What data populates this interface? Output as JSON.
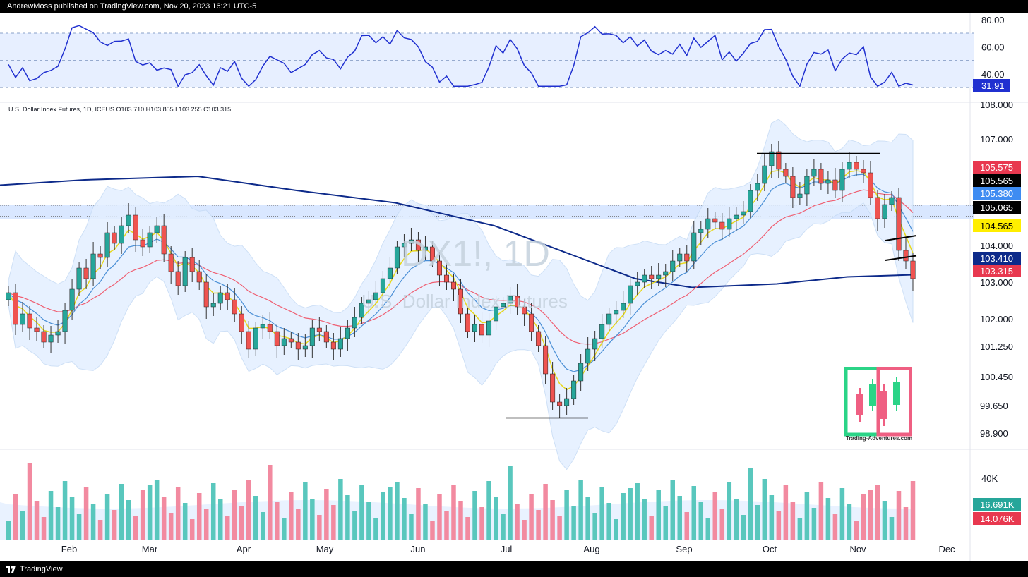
{
  "header": {
    "text": "AndrewMoss published on TradingView.com, Nov 20, 2023 16:21 UTC-5"
  },
  "footer": {
    "text": "TradingView",
    "logo": "tradingview-logo-icon"
  },
  "symbol_line": "U.S. Dollar Index Futures, 1D, ICEUS  O103.710  H103.855  L103.255  C103.315",
  "watermark": {
    "symbol": "DX1!, 1D",
    "name": "U.S. Dollar Index Futures"
  },
  "logo": {
    "text": "Trading-Adventures.com",
    "green": "#2bd487",
    "pink": "#ef5f82"
  },
  "colors": {
    "up": "#26a69a",
    "down": "#ef5350",
    "sma200": "#0d2a8a",
    "ema50": "#ef5f72",
    "ema20": "#4a8fd6",
    "ema10": "#e8d81c",
    "band": "#e3efff",
    "rsi": "#2030d0",
    "zone": "#cfe1ff"
  },
  "chart_data": {
    "type": "candlestick",
    "x_axis_labels": [
      "Feb",
      "Mar",
      "Apr",
      "May",
      "Jun",
      "Jul",
      "Aug",
      "Sep",
      "Oct",
      "Nov",
      "Dec"
    ],
    "price_axis": {
      "ticks": [
        "108.000",
        "107.000",
        "105.575",
        "105.565",
        "105.380",
        "105.065",
        "104.565",
        "104.000",
        "103.410",
        "103.315",
        "103.000",
        "102.000",
        "101.250",
        "100.450",
        "99.650",
        "98.900"
      ],
      "range": [
        98.6,
        108.2
      ]
    },
    "close_path": [
      102.9,
      102.0,
      102.3,
      101.9,
      101.8,
      101.5,
      101.7,
      101.8,
      102.4,
      103.0,
      103.6,
      103.3,
      104.0,
      103.9,
      104.6,
      104.3,
      104.8,
      105.1,
      104.4,
      104.2,
      104.6,
      104.8,
      104.0,
      103.5,
      103.1,
      103.9,
      103.5,
      103.2,
      102.5,
      102.6,
      102.9,
      102.7,
      102.3,
      101.8,
      101.3,
      101.9,
      102.0,
      101.8,
      101.4,
      101.6,
      101.5,
      101.3,
      101.4,
      101.9,
      101.8,
      101.5,
      101.3,
      101.6,
      101.9,
      102.2,
      102.6,
      102.7,
      102.9,
      103.3,
      103.6,
      104.2,
      104.3,
      104.4,
      104.1,
      104.2,
      103.8,
      103.4,
      103.2,
      103.0,
      102.3,
      101.8,
      102.0,
      101.7,
      102.1,
      102.5,
      102.6,
      102.8,
      102.5,
      102.3,
      101.8,
      101.4,
      100.6,
      99.8,
      99.7,
      99.9,
      100.4,
      100.9,
      101.3,
      101.6,
      102.0,
      102.3,
      102.4,
      102.6,
      103.1,
      103.2,
      103.4,
      103.3,
      103.4,
      103.5,
      103.8,
      104.0,
      103.8,
      104.6,
      104.7,
      105.0,
      104.9,
      104.7,
      105.0,
      105.1,
      105.2,
      105.8,
      106.0,
      106.5,
      106.9,
      106.4,
      106.2,
      105.6,
      105.7,
      106.2,
      106.4,
      106.0,
      106.1,
      105.8,
      106.4,
      106.6,
      106.4,
      106.3,
      105.6,
      105.0,
      105.4,
      105.6,
      104.1,
      103.8,
      103.3
    ],
    "annotations": {
      "range_top": 106.85,
      "summer_low": 99.35,
      "support_lines": [
        "103.9",
        "104.35"
      ]
    },
    "moving_averages": [
      "SMA 200",
      "EMA 50",
      "EMA 20",
      "EMA 10",
      "Bollinger Bands"
    ],
    "rsi": {
      "ticks": [
        "80.00",
        "60.00",
        "40.00"
      ],
      "current": "31.91",
      "levels": [
        70,
        50,
        30
      ],
      "range": [
        28,
        83
      ]
    },
    "volume": {
      "ticks": [
        "40K"
      ],
      "last_up": "16.691K",
      "last_down": "14.076K"
    }
  }
}
